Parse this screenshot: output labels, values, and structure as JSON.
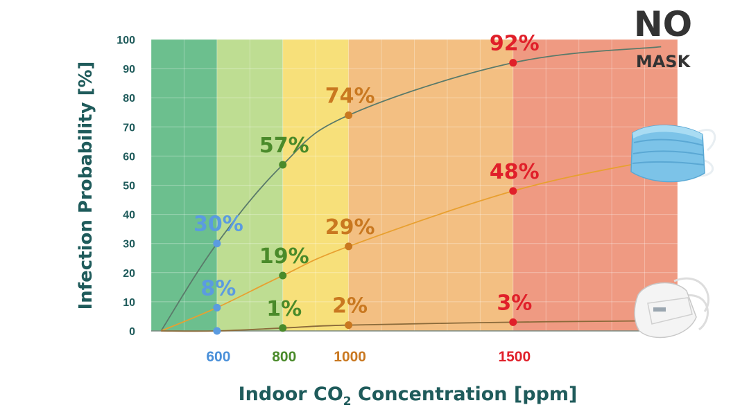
{
  "chart_data": {
    "type": "line",
    "xlabel_main": "Indoor CO",
    "xlabel_sub": "2",
    "xlabel_tail": " Concentration [ppm]",
    "ylabel": "Infection Probability [%]",
    "ylim": [
      0,
      100
    ],
    "xlim": [
      400,
      2000
    ],
    "y_ticks": [
      "0",
      "10",
      "20",
      "30",
      "40",
      "50",
      "60",
      "70",
      "80",
      "90",
      "100"
    ],
    "x_ticks": [
      {
        "label": "600",
        "value": 600,
        "color": "#4a90d9"
      },
      {
        "label": "800",
        "value": 800,
        "color": "#4a8a2a"
      },
      {
        "label": "1000",
        "value": 1000,
        "color": "#c97820"
      },
      {
        "label": "1500",
        "value": 1500,
        "color": "#e0202a"
      }
    ],
    "grid": true,
    "zones": [
      {
        "from": 400,
        "to": 600,
        "color": "#6cbf8e"
      },
      {
        "from": 600,
        "to": 800,
        "color": "#bedd92"
      },
      {
        "from": 800,
        "to": 1000,
        "color": "#f7e07a"
      },
      {
        "from": 1000,
        "to": 1500,
        "color": "#f3bf82"
      },
      {
        "from": 1500,
        "to": 2000,
        "color": "#ef9a82"
      }
    ],
    "series": [
      {
        "name": "",
        "legend_icon": "no-mask",
        "curve_color": "#5a7a6a",
        "points": [
          {
            "x": 600,
            "y": 30,
            "label": "30%",
            "color": "#5b9be0"
          },
          {
            "x": 800,
            "y": 57,
            "label": "57%",
            "color": "#4a8a2a"
          },
          {
            "x": 1000,
            "y": 74,
            "label": "74%",
            "color": "#c97820"
          },
          {
            "x": 1500,
            "y": 92,
            "label": "92%",
            "color": "#e0202a"
          }
        ]
      },
      {
        "name": "",
        "legend_icon": "surgical-mask-icon",
        "curve_color": "#e8a030",
        "points": [
          {
            "x": 600,
            "y": 8,
            "label": "8%",
            "color": "#5b9be0"
          },
          {
            "x": 800,
            "y": 19,
            "label": "19%",
            "color": "#4a8a2a"
          },
          {
            "x": 1000,
            "y": 29,
            "label": "29%",
            "color": "#c97820"
          },
          {
            "x": 1500,
            "y": 48,
            "label": "48%",
            "color": "#e0202a"
          }
        ]
      },
      {
        "name": "",
        "legend_icon": "ffp2-mask-icon",
        "curve_color": "#8a6a3a",
        "points": [
          {
            "x": 600,
            "y": 0,
            "label": "",
            "color": "#5b9be0"
          },
          {
            "x": 800,
            "y": 1,
            "label": "1%",
            "color": "#4a8a2a"
          },
          {
            "x": 1000,
            "y": 2,
            "label": "2%",
            "color": "#c97820"
          },
          {
            "x": 1500,
            "y": 3,
            "label": "3%",
            "color": "#e0202a"
          }
        ]
      }
    ],
    "legend": {
      "no_mask_line1": "NO",
      "no_mask_line2": "MASK"
    }
  }
}
